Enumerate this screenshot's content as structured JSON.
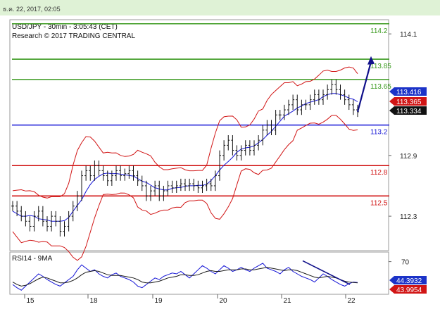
{
  "header": {
    "timestamp": "ธ.ค. 22, 2017, 02:05"
  },
  "chart_data": [
    {
      "type": "candlestick",
      "title": "USD/JPY - 30min - 3:05:43 (CET)",
      "subtitle": "Research © 2017 TRADING CENTRAL",
      "y_ticks": [
        114.1,
        112.9,
        112.3
      ],
      "y_tick_labels": [
        "114.1",
        "112.9",
        "112.3"
      ],
      "x_tick_labels": [
        "15",
        "18",
        "19",
        "20",
        "21",
        "22"
      ],
      "ylim": [
        111.96,
        114.24
      ],
      "levels": [
        {
          "value": 114.2,
          "label": "114.2",
          "color": "#3a9a1e"
        },
        {
          "value": 113.85,
          "label": "113.85",
          "color": "#3a9a1e"
        },
        {
          "value": 113.65,
          "label": "113.65",
          "color": "#3a9a1e"
        },
        {
          "value": 113.2,
          "label": "113.2",
          "color": "#1515d6"
        },
        {
          "value": 112.8,
          "label": "112.8",
          "color": "#d11515"
        },
        {
          "value": 112.5,
          "label": "112.5",
          "color": "#d11515"
        }
      ],
      "price_tags": [
        {
          "value": 113.416,
          "label": "113.416",
          "bg": "#1c33c8"
        },
        {
          "value": 113.365,
          "label": "113.365",
          "bg": "#d11515"
        },
        {
          "value": 113.334,
          "label": "113.334",
          "bg": "#111111"
        }
      ],
      "close_path": [
        112.4,
        112.35,
        112.3,
        112.25,
        112.2,
        112.3,
        112.35,
        112.25,
        112.2,
        112.3,
        112.25,
        112.15,
        112.2,
        112.3,
        112.4,
        112.5,
        112.7,
        112.75,
        112.7,
        112.8,
        112.75,
        112.7,
        112.65,
        112.7,
        112.75,
        112.7,
        112.72,
        112.75,
        112.7,
        112.65,
        112.6,
        112.5,
        112.55,
        112.6,
        112.5,
        112.55,
        112.6,
        112.58,
        112.6,
        112.62,
        112.6,
        112.62,
        112.6,
        112.58,
        112.6,
        112.62,
        112.6,
        112.7,
        112.9,
        113.0,
        113.05,
        112.95,
        112.9,
        112.95,
        113.0,
        112.95,
        113.0,
        113.05,
        113.15,
        113.2,
        113.15,
        113.3,
        113.3,
        113.35,
        113.4,
        113.45,
        113.35,
        113.4,
        113.4,
        113.45,
        113.5,
        113.45,
        113.5,
        113.55,
        113.6,
        113.55,
        113.5,
        113.45,
        113.4,
        113.35,
        113.33
      ],
      "forecast_arrow": {
        "from": 113.33,
        "to": 113.88,
        "color": "#10108a"
      }
    },
    {
      "type": "line",
      "title": "RSI14 - 9MA",
      "y_tick_labels": [
        "70"
      ],
      "series": [
        {
          "values": [
            42,
            38,
            35,
            40,
            45,
            50,
            55,
            52,
            48,
            45,
            42,
            40,
            44,
            48,
            52,
            60,
            66,
            62,
            58,
            60,
            55,
            52,
            50,
            54,
            56,
            52,
            50,
            48,
            45,
            40,
            38,
            42,
            46,
            50,
            48,
            52,
            54,
            56,
            55,
            58,
            54,
            50,
            55,
            60,
            65,
            62,
            58,
            55,
            60,
            65,
            62,
            58,
            60,
            63,
            60,
            58,
            62,
            65,
            68,
            62,
            60,
            58,
            55,
            60,
            63,
            58,
            55,
            52,
            50,
            48,
            45,
            50,
            55,
            52,
            48,
            45,
            42,
            40,
            43,
            45,
            44.4
          ],
          "color": "#1515d6"
        },
        {
          "values": [
            45,
            42,
            40,
            41,
            43,
            46,
            49,
            51,
            50,
            48,
            46,
            44,
            44,
            45,
            47,
            50,
            54,
            57,
            58,
            59,
            58,
            56,
            54,
            53,
            53,
            53,
            52,
            51,
            50,
            48,
            45,
            44,
            44,
            45,
            46,
            48,
            50,
            51,
            52,
            54,
            54,
            53,
            53,
            54,
            56,
            58,
            59,
            58,
            58,
            59,
            60,
            60,
            60,
            61,
            61,
            60,
            60,
            61,
            62,
            63,
            62,
            61,
            60,
            59,
            60,
            60,
            59,
            57,
            55,
            53,
            51,
            50,
            51,
            52,
            51,
            50,
            48,
            46,
            45,
            44.5,
            44.0
          ],
          "color": "#1a1a1a"
        }
      ],
      "price_tags": [
        {
          "value": 44.3932,
          "label": "44.3932",
          "bg": "#1c33c8"
        },
        {
          "value": 43.9954,
          "label": "43.9954",
          "bg": "#d11515"
        }
      ]
    }
  ]
}
